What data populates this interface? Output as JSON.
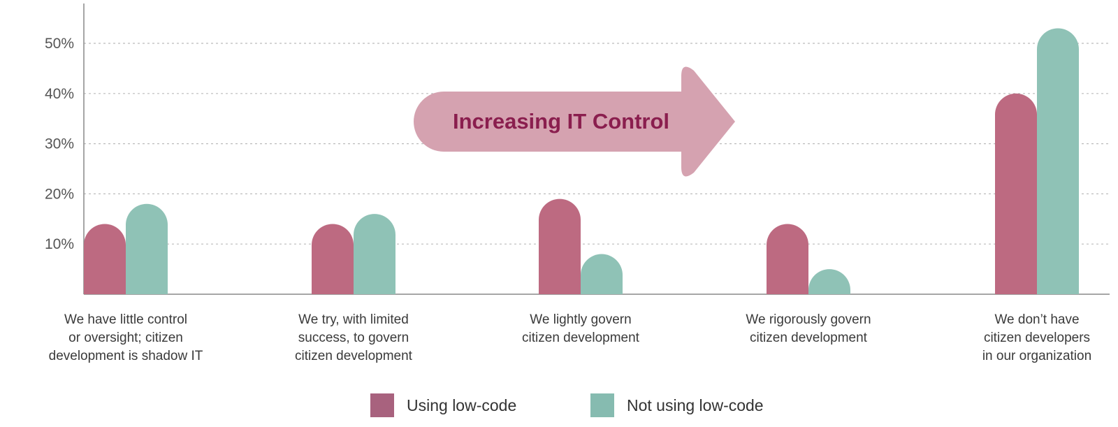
{
  "colors": {
    "using": "#bd6a81",
    "not_using": "#8fc2b6",
    "legend_using": "#a8627e",
    "legend_not_using": "#86bbb0",
    "arrow_fill": "#d5a2b0",
    "arrow_text": "#8a1e4e",
    "grid": "#bbbbbb",
    "axis": "#888888"
  },
  "annotation": {
    "text": "Increasing IT Control"
  },
  "chart_data": {
    "type": "bar",
    "title": "",
    "xlabel": "",
    "ylabel": "",
    "ylim": [
      0,
      58
    ],
    "yticks": [
      10,
      20,
      30,
      40,
      50
    ],
    "ytick_labels": [
      "10%",
      "20%",
      "30%",
      "40%",
      "50%"
    ],
    "grid": "horizontal-dotted",
    "legend_position": "bottom-center",
    "categories": [
      [
        "We have little control",
        "or oversight; citizen",
        "development is shadow IT"
      ],
      [
        "We try, with limited",
        "success, to govern",
        "citizen development"
      ],
      [
        "We lightly govern",
        "citizen development"
      ],
      [
        "We rigorously govern",
        "citizen development"
      ],
      [
        "We don’t have",
        "citizen developers",
        "in our organization"
      ]
    ],
    "series": [
      {
        "name": "Using low-code",
        "values": [
          14,
          14,
          19,
          14,
          40
        ]
      },
      {
        "name": "Not using low-code",
        "values": [
          18,
          16,
          8,
          5,
          53
        ]
      }
    ]
  }
}
